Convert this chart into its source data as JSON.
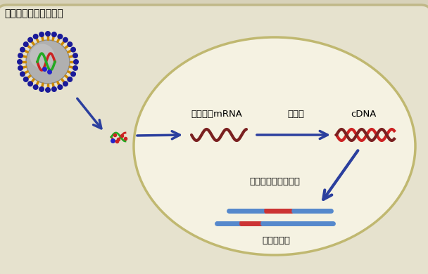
{
  "bg_color": "#d8d2ba",
  "cell_bg": "#e6e2ce",
  "nucleus_bg": "#f5f2e2",
  "title_text": "外来性ボルナウイルス",
  "label_mrna": "ウイルスmRNA",
  "label_reverse": "逆転写",
  "label_cdna": "cDNA",
  "label_integration": "インテグレーション",
  "label_chromosome": "宿主染色体",
  "arrow_color": "#2b3f9e",
  "mrna_color": "#7a2020",
  "cdna_color1": "#cc2222",
  "cdna_color2": "#7a2020",
  "chrom_blue": "#5588cc",
  "chrom_red": "#cc3333",
  "virus_outer_blue": "#1a1a99",
  "virus_outer_orange": "#cc8800",
  "virus_inner_gray": "#aaaaaa",
  "virus_rna_red": "#cc2222",
  "virus_rna_green": "#22aa22",
  "virus_rna_blue": "#0000cc"
}
